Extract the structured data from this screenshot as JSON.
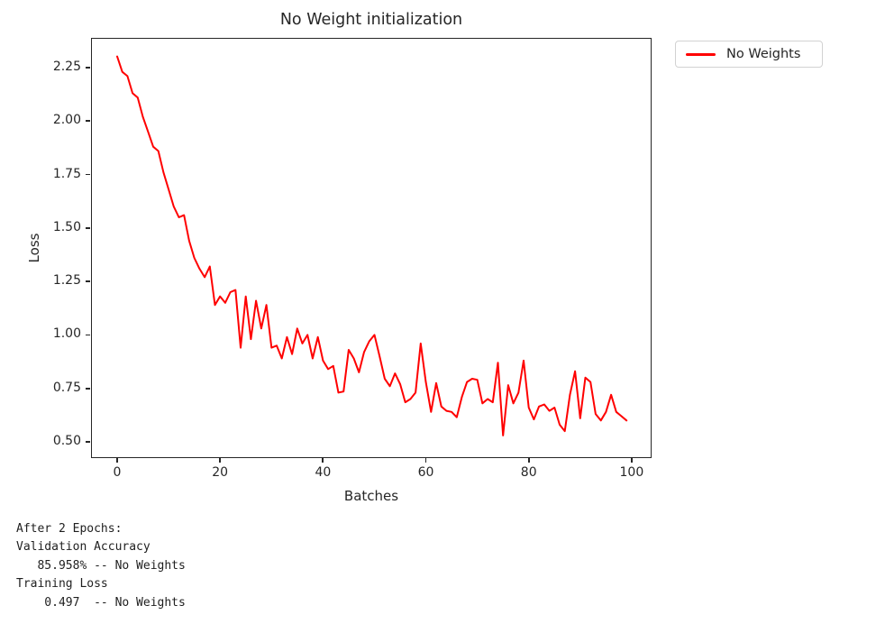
{
  "chart_data": {
    "type": "line",
    "title": "No Weight initialization",
    "xlabel": "Batches",
    "ylabel": "Loss",
    "legend": [
      "No Weights"
    ],
    "legend_position": "outside upper right",
    "line_color": "#ff0000",
    "grid": false,
    "xlim": [
      -5.08,
      103.87
    ],
    "ylim": [
      0.424,
      2.389
    ],
    "x_ticks": [
      0,
      20,
      40,
      60,
      80,
      100
    ],
    "y_ticks": [
      0.5,
      0.75,
      1.0,
      1.25,
      1.5,
      1.75,
      2.0,
      2.25
    ],
    "x_description": "batch index 0..99 (one point per batch)",
    "series": [
      {
        "name": "No Weights",
        "values": [
          2.302,
          2.23,
          2.21,
          2.13,
          2.11,
          2.02,
          1.95,
          1.88,
          1.86,
          1.76,
          1.68,
          1.6,
          1.55,
          1.56,
          1.44,
          1.36,
          1.31,
          1.27,
          1.32,
          1.14,
          1.18,
          1.15,
          1.2,
          1.21,
          0.94,
          1.18,
          0.98,
          1.16,
          1.03,
          1.14,
          0.94,
          0.95,
          0.89,
          0.99,
          0.91,
          1.03,
          0.96,
          1.0,
          0.89,
          0.99,
          0.88,
          0.84,
          0.855,
          0.73,
          0.735,
          0.93,
          0.89,
          0.825,
          0.92,
          0.97,
          1.0,
          0.9,
          0.795,
          0.76,
          0.82,
          0.77,
          0.685,
          0.7,
          0.73,
          0.96,
          0.78,
          0.64,
          0.775,
          0.665,
          0.645,
          0.64,
          0.615,
          0.71,
          0.78,
          0.795,
          0.79,
          0.68,
          0.7,
          0.685,
          0.87,
          0.53,
          0.765,
          0.68,
          0.73,
          0.88,
          0.66,
          0.605,
          0.665,
          0.675,
          0.645,
          0.66,
          0.58,
          0.55,
          0.72,
          0.83,
          0.61,
          0.8,
          0.78,
          0.63,
          0.6,
          0.64,
          0.72,
          0.64,
          0.62,
          0.6
        ]
      }
    ]
  },
  "console_output": "After 2 Epochs:\nValidation Accuracy\n   85.958% -- No Weights\nTraining Loss\n    0.497  -- No Weights",
  "stats": {
    "epochs_line": "After 2 Epochs:",
    "validation_accuracy_header": "Validation Accuracy",
    "validation_accuracy_value": "85.958% -- No Weights",
    "training_loss_header": "Training Loss",
    "training_loss_value": "0.497  -- No Weights"
  }
}
